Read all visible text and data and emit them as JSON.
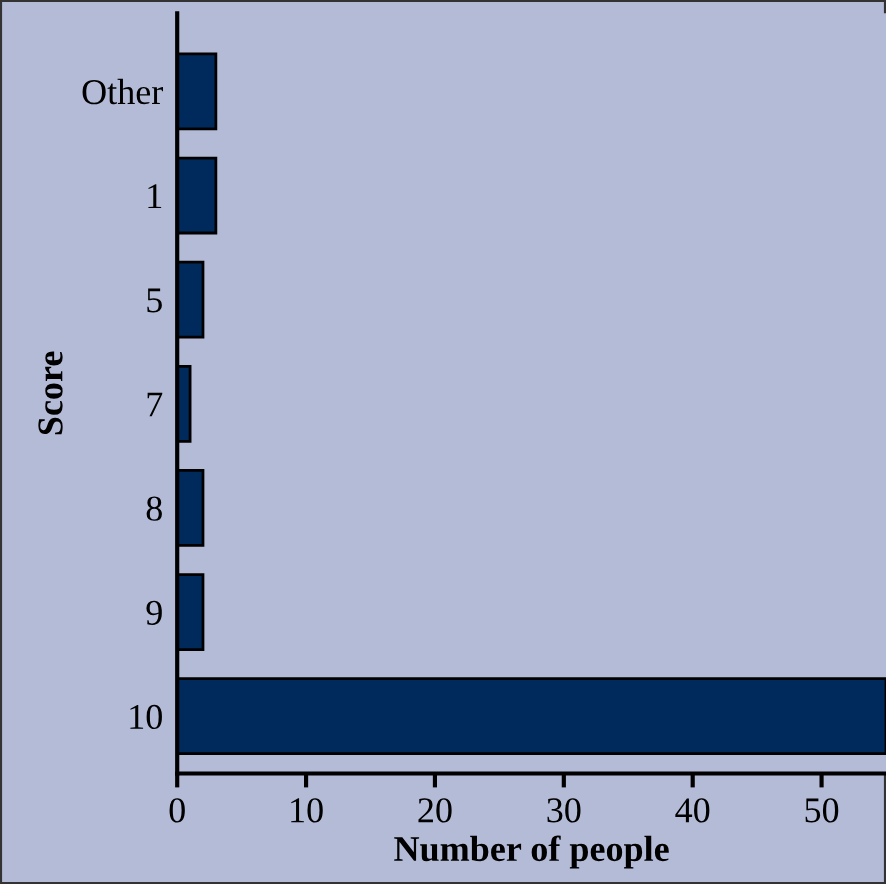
{
  "chart_data": {
    "type": "bar",
    "orientation": "horizontal",
    "xlabel": "Number of people",
    "ylabel": "Score",
    "categories": [
      "Other",
      "1",
      "5",
      "7",
      "8",
      "9",
      "10"
    ],
    "values": [
      3,
      3,
      2,
      1,
      2,
      2,
      55
    ],
    "color": "#002a5c",
    "xlim": [
      0,
      55
    ],
    "xticks": [
      0,
      10,
      20,
      30,
      40,
      50
    ],
    "grid": false,
    "legend": false
  }
}
